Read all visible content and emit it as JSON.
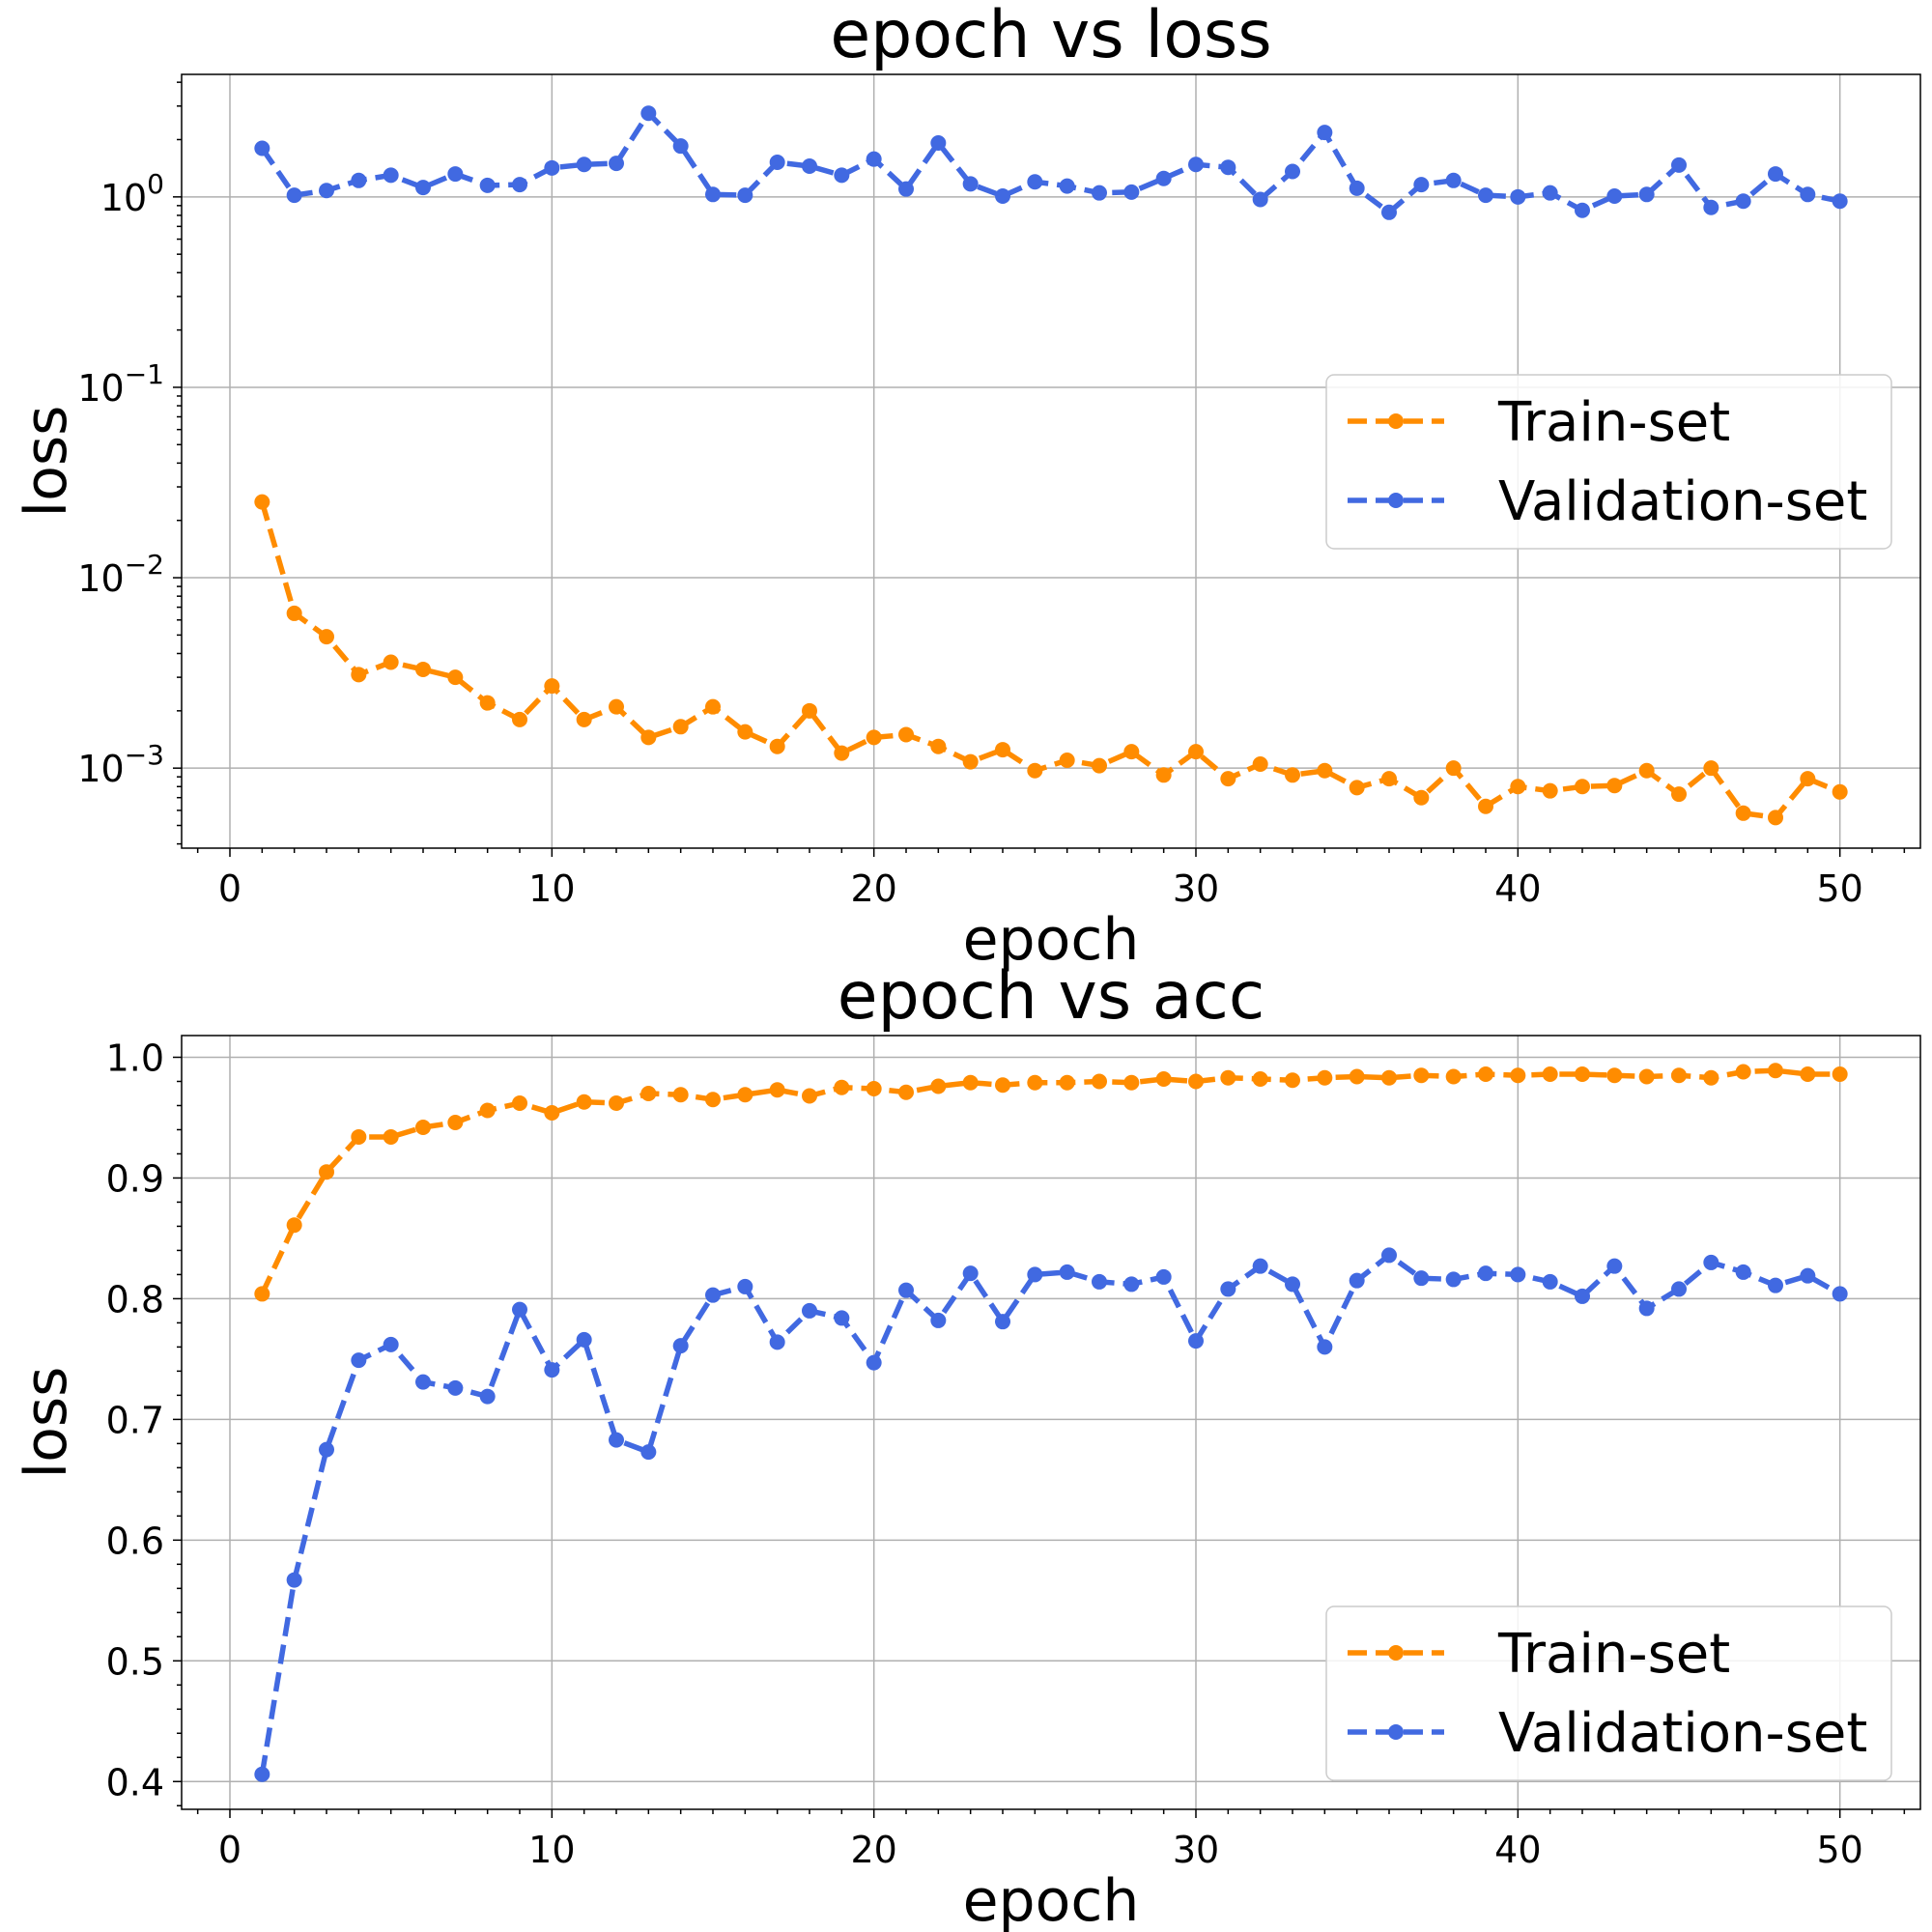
{
  "chart_data": [
    {
      "type": "line",
      "title": "epoch vs loss",
      "xlabel": "epoch",
      "ylabel": "loss",
      "yscale": "log",
      "xlim": [
        -1.5,
        52.5
      ],
      "ylim": [
        0.00038,
        4.4
      ],
      "x_ticks": [
        0,
        10,
        20,
        30,
        40,
        50
      ],
      "y_ticks": [
        0.001,
        0.01,
        0.1,
        1
      ],
      "y_tick_labels": [
        {
          "base": "10",
          "exp": "−3"
        },
        {
          "base": "10",
          "exp": "−2"
        },
        {
          "base": "10",
          "exp": "−1"
        },
        {
          "base": "10",
          "exp": "0"
        }
      ],
      "grid": true,
      "legend_position": "center-right",
      "x": [
        1,
        2,
        3,
        4,
        5,
        6,
        7,
        8,
        9,
        10,
        11,
        12,
        13,
        14,
        15,
        16,
        17,
        18,
        19,
        20,
        21,
        22,
        23,
        24,
        25,
        26,
        27,
        28,
        29,
        30,
        31,
        32,
        33,
        34,
        35,
        36,
        37,
        38,
        39,
        40,
        41,
        42,
        43,
        44,
        45,
        46,
        47,
        48,
        49,
        50
      ],
      "series": [
        {
          "name": "Train-set",
          "color": "#ff8c00",
          "values": [
            0.025,
            0.0065,
            0.0049,
            0.0031,
            0.0036,
            0.0033,
            0.003,
            0.0022,
            0.0018,
            0.0027,
            0.0018,
            0.0021,
            0.00145,
            0.00165,
            0.0021,
            0.00155,
            0.0013,
            0.002,
            0.0012,
            0.00145,
            0.0015,
            0.0013,
            0.00108,
            0.00125,
            0.00097,
            0.0011,
            0.00103,
            0.00122,
            0.00092,
            0.00122,
            0.00088,
            0.00105,
            0.00092,
            0.00097,
            0.00079,
            0.00088,
            0.0007,
            0.001,
            0.00063,
            0.0008,
            0.00076,
            0.0008,
            0.00081,
            0.00097,
            0.00073,
            0.001,
            0.00058,
            0.00055,
            0.00088,
            0.00075
          ]
        },
        {
          "name": "Validation-set",
          "color": "#4169e1",
          "values": [
            1.8,
            1.02,
            1.08,
            1.22,
            1.3,
            1.12,
            1.32,
            1.15,
            1.16,
            1.42,
            1.48,
            1.5,
            2.75,
            1.85,
            1.03,
            1.02,
            1.52,
            1.45,
            1.3,
            1.58,
            1.1,
            1.92,
            1.17,
            1.01,
            1.2,
            1.14,
            1.05,
            1.06,
            1.25,
            1.48,
            1.43,
            0.97,
            1.36,
            2.18,
            1.11,
            0.83,
            1.16,
            1.22,
            1.02,
            1.0,
            1.05,
            0.85,
            1.01,
            1.03,
            1.47,
            0.88,
            0.95,
            1.32,
            1.03,
            0.95
          ]
        }
      ]
    },
    {
      "type": "line",
      "title": "epoch vs acc",
      "xlabel": "epoch",
      "ylabel": "loss",
      "yscale": "linear",
      "xlim": [
        -1.5,
        52.5
      ],
      "ylim": [
        0.377,
        1.018
      ],
      "x_ticks": [
        0,
        10,
        20,
        30,
        40,
        50
      ],
      "y_ticks": [
        0.4,
        0.5,
        0.6,
        0.7,
        0.8,
        0.9,
        1.0
      ],
      "y_tick_labels": [
        "0.4",
        "0.5",
        "0.6",
        "0.7",
        "0.8",
        "0.9",
        "1.0"
      ],
      "grid": true,
      "legend_position": "lower-right",
      "x": [
        1,
        2,
        3,
        4,
        5,
        6,
        7,
        8,
        9,
        10,
        11,
        12,
        13,
        14,
        15,
        16,
        17,
        18,
        19,
        20,
        21,
        22,
        23,
        24,
        25,
        26,
        27,
        28,
        29,
        30,
        31,
        32,
        33,
        34,
        35,
        36,
        37,
        38,
        39,
        40,
        41,
        42,
        43,
        44,
        45,
        46,
        47,
        48,
        49,
        50
      ],
      "series": [
        {
          "name": "Train-set",
          "color": "#ff8c00",
          "values": [
            0.804,
            0.861,
            0.905,
            0.934,
            0.934,
            0.942,
            0.946,
            0.956,
            0.962,
            0.954,
            0.963,
            0.962,
            0.97,
            0.969,
            0.965,
            0.969,
            0.973,
            0.968,
            0.975,
            0.974,
            0.971,
            0.976,
            0.979,
            0.977,
            0.979,
            0.979,
            0.98,
            0.979,
            0.982,
            0.98,
            0.983,
            0.982,
            0.981,
            0.983,
            0.984,
            0.983,
            0.985,
            0.984,
            0.986,
            0.985,
            0.986,
            0.986,
            0.985,
            0.984,
            0.985,
            0.983,
            0.988,
            0.989,
            0.986,
            0.986
          ]
        },
        {
          "name": "Validation-set",
          "color": "#4169e1",
          "values": [
            0.406,
            0.567,
            0.675,
            0.749,
            0.762,
            0.731,
            0.726,
            0.719,
            0.791,
            0.741,
            0.766,
            0.683,
            0.673,
            0.761,
            0.803,
            0.81,
            0.764,
            0.79,
            0.784,
            0.747,
            0.807,
            0.782,
            0.821,
            0.781,
            0.82,
            0.822,
            0.814,
            0.812,
            0.818,
            0.765,
            0.808,
            0.827,
            0.812,
            0.76,
            0.815,
            0.836,
            0.817,
            0.816,
            0.821,
            0.82,
            0.814,
            0.802,
            0.827,
            0.792,
            0.808,
            0.83,
            0.822,
            0.811,
            0.819,
            0.804
          ]
        }
      ]
    }
  ]
}
